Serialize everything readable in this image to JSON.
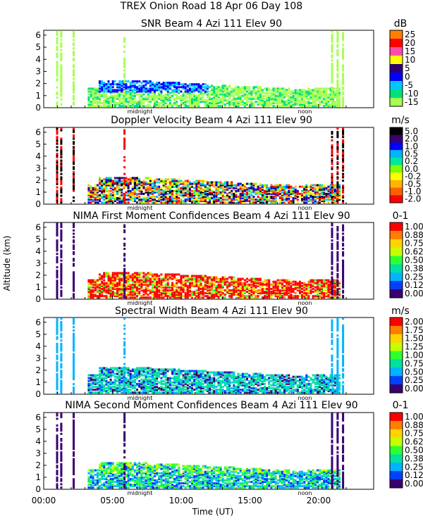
{
  "header": {
    "line1": "TREX Onion Road  18 Apr 06 Day 108"
  },
  "axes": {
    "ylabel": "Altitude (km)",
    "xlabel": "Time (UT)",
    "x_ticks": [
      "00:00",
      "05:00",
      "10:00",
      "15:00",
      "20:00"
    ],
    "y_ticks": [
      "0",
      "1",
      "2",
      "3",
      "4",
      "5",
      "6"
    ],
    "markers": [
      "midnight",
      "noon"
    ]
  },
  "chart_data": [
    {
      "type": "heatmap",
      "title": "SNR Beam 4 Azi 111 Elev 90",
      "units": "dB",
      "colorbar_labels": [
        "25",
        "20",
        "15",
        "10",
        "5",
        "0",
        "-5",
        "-10",
        "-15"
      ],
      "colors": [
        "#ff7f00",
        "#ff0000",
        "#ff4da6",
        "#ffff00",
        "#2c0070",
        "#0000ff",
        "#00c8ff",
        "#00e07a",
        "#a6ff50"
      ],
      "xlim": [
        0,
        24
      ],
      "ylim": [
        0,
        6.4
      ]
    },
    {
      "type": "heatmap",
      "title": "Doppler Velocity Beam 4 Azi 111 Elev 90",
      "units": "m/s",
      "colorbar_labels": [
        "5.0",
        "2.0",
        "1.0",
        "0.5",
        "0.2",
        "0.0",
        "-0.2",
        "-0.5",
        "-1.0",
        "-2.0"
      ],
      "colors": [
        "#000000",
        "#3a0070",
        "#0000ff",
        "#00b4ff",
        "#00e6a0",
        "#7cff00",
        "#ffff00",
        "#ffb400",
        "#ff6000",
        "#ff0000"
      ],
      "xlim": [
        0,
        24
      ],
      "ylim": [
        0,
        6.4
      ]
    },
    {
      "type": "heatmap",
      "title": "NIMA First Moment Confidences Beam 4 Azi 111 Elev 90",
      "units": "0-1",
      "colorbar_labels": [
        "1.00",
        "0.88",
        "0.75",
        "0.62",
        "0.50",
        "0.38",
        "0.25",
        "0.12",
        "0.00"
      ],
      "colors": [
        "#ff0000",
        "#ff7f00",
        "#ffd400",
        "#c8ff00",
        "#30ff30",
        "#00e0a0",
        "#00b4ff",
        "#0040ff",
        "#3a0070"
      ],
      "xlim": [
        0,
        24
      ],
      "ylim": [
        0,
        6.4
      ]
    },
    {
      "type": "heatmap",
      "title": "Spectral Width Beam 4 Azi 111 Elev 90",
      "units": "m/s",
      "colorbar_labels": [
        "2.00",
        "1.75",
        "1.50",
        "1.25",
        "1.00",
        "0.75",
        "0.50",
        "0.25",
        "0.00"
      ],
      "colors": [
        "#ff0000",
        "#ff7f00",
        "#ffd400",
        "#c8ff00",
        "#30ff30",
        "#00e0a0",
        "#00b4ff",
        "#0040ff",
        "#3a0070"
      ],
      "xlim": [
        0,
        24
      ],
      "ylim": [
        0,
        6.4
      ]
    },
    {
      "type": "heatmap",
      "title": "NIMA Second Moment Confidences Beam 4 Azi 111 Elev 90",
      "units": "0-1",
      "colorbar_labels": [
        "1.00",
        "0.88",
        "0.75",
        "0.62",
        "0.50",
        "0.38",
        "0.25",
        "0.12",
        "0.00"
      ],
      "colors": [
        "#ff0000",
        "#ff7f00",
        "#ffd400",
        "#c8ff00",
        "#30ff30",
        "#00e0a0",
        "#00b4ff",
        "#0040ff",
        "#3a0070"
      ],
      "xlim": [
        0,
        24
      ],
      "ylim": [
        0,
        6.4
      ]
    }
  ]
}
